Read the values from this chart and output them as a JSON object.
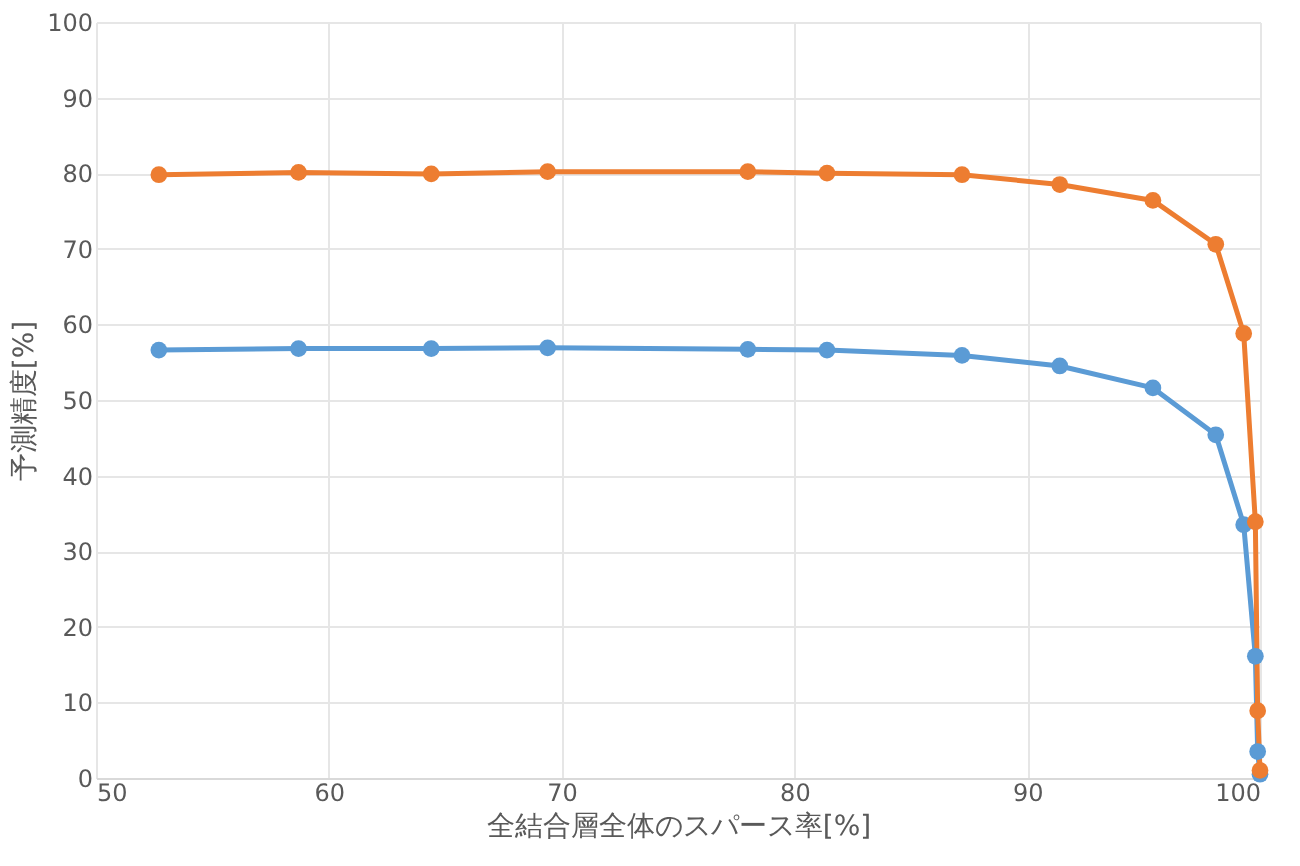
{
  "chart_data": {
    "type": "line",
    "xlabel": "全結合層全体のスパース率[%]",
    "ylabel": "予測精度[%]",
    "x": [
      52.7,
      58.7,
      64.4,
      69.4,
      78.0,
      81.4,
      87.2,
      91.4,
      95.4,
      98.1,
      99.3,
      99.8,
      99.9,
      100
    ],
    "series": [
      {
        "color": "#5b9bd5",
        "values": [
          56.6,
          56.8,
          56.8,
          56.9,
          56.7,
          56.6,
          55.9,
          54.5,
          51.6,
          45.4,
          33.5,
          16.1,
          3.5,
          0.5
        ]
      },
      {
        "color": "#ed7d31",
        "values": [
          79.8,
          80.1,
          79.9,
          80.2,
          80.2,
          80.0,
          79.8,
          78.5,
          76.4,
          70.6,
          58.8,
          33.9,
          8.9,
          1.0
        ]
      }
    ],
    "xlim": [
      50,
      100
    ],
    "xticks": [
      50,
      60,
      70,
      80,
      90,
      100
    ],
    "ylim": [
      0,
      100
    ],
    "yticks": [
      0,
      10,
      20,
      30,
      40,
      50,
      60,
      70,
      80,
      90,
      100
    ],
    "grid": true,
    "legend": false,
    "marker": "circle",
    "line_style": "solid"
  }
}
